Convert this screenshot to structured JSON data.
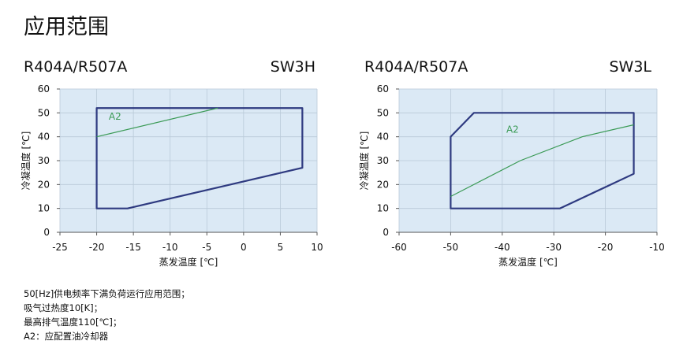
{
  "title": "应用范围",
  "notes": [
    "50[Hz]供电频率下满负荷运行应用范围；",
    "吸气过热度10[K]；",
    "最高排气温度110[℃]；",
    "A2：应配置油冷却器"
  ],
  "colors": {
    "plot_bg": "#dbe9f5",
    "grid": "#b9c9d8",
    "envelope": "#2e3a80",
    "a2_line": "#3a9a55"
  },
  "chart_data": [
    {
      "type": "line",
      "refrigerant": "R404A/R507A",
      "model": "SW3H",
      "xlabel": "蒸发温度 [℃]",
      "ylabel": "冷凝温度 [℃]",
      "xlim": [
        -25,
        10
      ],
      "ylim": [
        0,
        60
      ],
      "xticks": [
        -25,
        -20,
        -15,
        -10,
        -5,
        0,
        5,
        10
      ],
      "yticks": [
        0,
        10,
        20,
        30,
        40,
        50,
        60
      ],
      "grid": true,
      "series": [
        {
          "name": "envelope",
          "closed": true,
          "x": [
            -20,
            -15.8,
            8,
            8,
            -20
          ],
          "y": [
            10,
            10,
            27,
            52,
            52
          ]
        },
        {
          "name": "A2",
          "x": [
            -20,
            -3.5
          ],
          "y": [
            40,
            52
          ]
        }
      ],
      "annotations": [
        {
          "text": "A2",
          "x": -17.5,
          "y": 48.5
        }
      ]
    },
    {
      "type": "line",
      "refrigerant": "R404A/R507A",
      "model": "SW3L",
      "xlabel": "蒸发温度 [℃]",
      "ylabel": "冷凝温度 [℃]",
      "xlim": [
        -60,
        -10
      ],
      "ylim": [
        0,
        60
      ],
      "xticks": [
        -60,
        -50,
        -40,
        -30,
        -20,
        -10
      ],
      "yticks": [
        0,
        10,
        20,
        30,
        40,
        50,
        60
      ],
      "grid": true,
      "series": [
        {
          "name": "envelope",
          "closed": true,
          "x": [
            -50,
            -28.8,
            -14.5,
            -14.5,
            -45.5,
            -50
          ],
          "y": [
            10,
            10,
            24.5,
            50,
            50,
            40
          ]
        },
        {
          "name": "A2",
          "x": [
            -50,
            -36.5,
            -24.5,
            -14.5
          ],
          "y": [
            15,
            30,
            40,
            45
          ]
        }
      ],
      "annotations": [
        {
          "text": "A2",
          "x": -38,
          "y": 43
        }
      ]
    }
  ]
}
